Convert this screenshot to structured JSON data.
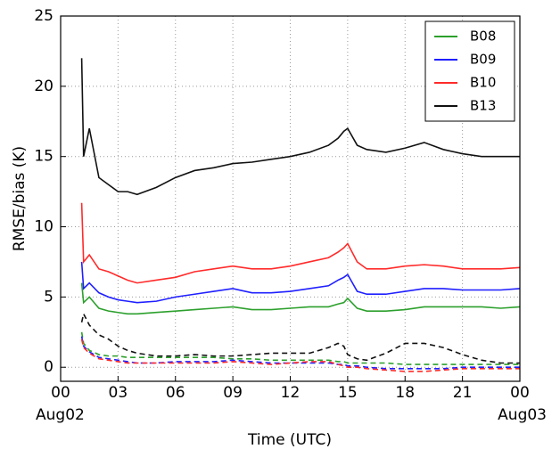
{
  "chart_data": {
    "type": "line",
    "x_label": "Time (UTC)",
    "y_label": "RMSE/bias (K)",
    "xlim": [
      0,
      24
    ],
    "ylim": [
      -1,
      25
    ],
    "xticks": [
      {
        "value": 0,
        "label": "00"
      },
      {
        "value": 3,
        "label": "03"
      },
      {
        "value": 6,
        "label": "06"
      },
      {
        "value": 9,
        "label": "09"
      },
      12,
      15,
      18,
      21,
      {
        "value": 24,
        "label": "00"
      }
    ],
    "x_date_labels": [
      {
        "value": 0,
        "label": "Aug02"
      },
      {
        "value": 24,
        "label": "Aug03"
      }
    ],
    "yticks": [
      0,
      5,
      10,
      15,
      20,
      25
    ],
    "grid": true,
    "legend_position": "upper-right",
    "x": [
      1.1,
      1.2,
      1.5,
      2,
      2.5,
      3,
      3.5,
      4,
      5,
      6,
      7,
      8,
      9,
      10,
      11,
      12,
      13,
      14,
      14.5,
      14.8,
      15,
      15.5,
      16,
      17,
      18,
      19,
      20,
      21,
      22,
      23,
      24
    ],
    "series": [
      {
        "name": "B08",
        "color": "#2ca02c",
        "dashed": false,
        "values": [
          6,
          4.6,
          5,
          4.2,
          4,
          3.9,
          3.8,
          3.8,
          3.9,
          4,
          4.1,
          4.2,
          4.3,
          4.1,
          4.1,
          4.2,
          4.3,
          4.3,
          4.5,
          4.6,
          4.9,
          4.2,
          4,
          4,
          4.1,
          4.3,
          4.3,
          4.3,
          4.3,
          4.2,
          4.3
        ]
      },
      {
        "name": "B09",
        "color": "#1f1fff",
        "dashed": false,
        "values": [
          7.5,
          5.6,
          6,
          5.3,
          5,
          4.8,
          4.7,
          4.6,
          4.7,
          5,
          5.2,
          5.4,
          5.6,
          5.3,
          5.3,
          5.4,
          5.6,
          5.8,
          6.2,
          6.4,
          6.6,
          5.4,
          5.2,
          5.2,
          5.4,
          5.6,
          5.6,
          5.5,
          5.5,
          5.5,
          5.6
        ]
      },
      {
        "name": "B10",
        "color": "#ff2a2a",
        "dashed": false,
        "values": [
          11.7,
          7.5,
          8,
          7,
          6.8,
          6.5,
          6.2,
          6,
          6.2,
          6.4,
          6.8,
          7,
          7.2,
          7,
          7,
          7.2,
          7.5,
          7.8,
          8.2,
          8.5,
          8.8,
          7.5,
          7,
          7,
          7.2,
          7.3,
          7.2,
          7,
          7,
          7,
          7.1
        ]
      },
      {
        "name": "B13",
        "color": "#111111",
        "dashed": false,
        "values": [
          22,
          15,
          17,
          13.5,
          13,
          12.5,
          12.5,
          12.3,
          12.8,
          13.5,
          14,
          14.2,
          14.5,
          14.6,
          14.8,
          15,
          15.3,
          15.8,
          16.3,
          16.8,
          17,
          15.8,
          15.5,
          15.3,
          15.6,
          16,
          15.5,
          15.2,
          15,
          15,
          15
        ]
      },
      {
        "color": "#2ca02c",
        "dashed": true,
        "values": [
          2.5,
          1.7,
          1.2,
          0.9,
          0.8,
          0.8,
          0.7,
          0.7,
          0.7,
          0.7,
          0.7,
          0.7,
          0.6,
          0.6,
          0.5,
          0.5,
          0.5,
          0.5,
          0.4,
          0.4,
          0.3,
          0.3,
          0.3,
          0.3,
          0.2,
          0.2,
          0.2,
          0.2,
          0.2,
          0.2,
          0.2
        ]
      },
      {
        "color": "#1f1fff",
        "dashed": true,
        "values": [
          2.2,
          1.5,
          1.1,
          0.7,
          0.6,
          0.5,
          0.4,
          0.3,
          0.3,
          0.4,
          0.4,
          0.4,
          0.5,
          0.4,
          0.3,
          0.3,
          0.3,
          0.3,
          0.2,
          0.2,
          0.1,
          0.1,
          0,
          -0.1,
          -0.1,
          -0.1,
          -0.1,
          0,
          0,
          0,
          0
        ]
      },
      {
        "color": "#ff2a2a",
        "dashed": true,
        "values": [
          2,
          1.4,
          1,
          0.6,
          0.5,
          0.4,
          0.3,
          0.3,
          0.3,
          0.3,
          0.3,
          0.3,
          0.4,
          0.3,
          0.2,
          0.3,
          0.4,
          0.4,
          0.2,
          0.1,
          0,
          0,
          -0.1,
          -0.2,
          -0.3,
          -0.3,
          -0.2,
          -0.1,
          -0.1,
          -0.1,
          -0.1
        ]
      },
      {
        "color": "#111111",
        "dashed": true,
        "values": [
          3.2,
          3.8,
          3,
          2.3,
          2,
          1.5,
          1.2,
          1,
          0.8,
          0.8,
          0.9,
          0.8,
          0.8,
          0.9,
          1,
          1,
          1,
          1.4,
          1.7,
          1.5,
          0.9,
          0.6,
          0.5,
          1,
          1.7,
          1.7,
          1.4,
          0.9,
          0.5,
          0.3,
          0.3
        ]
      }
    ]
  }
}
